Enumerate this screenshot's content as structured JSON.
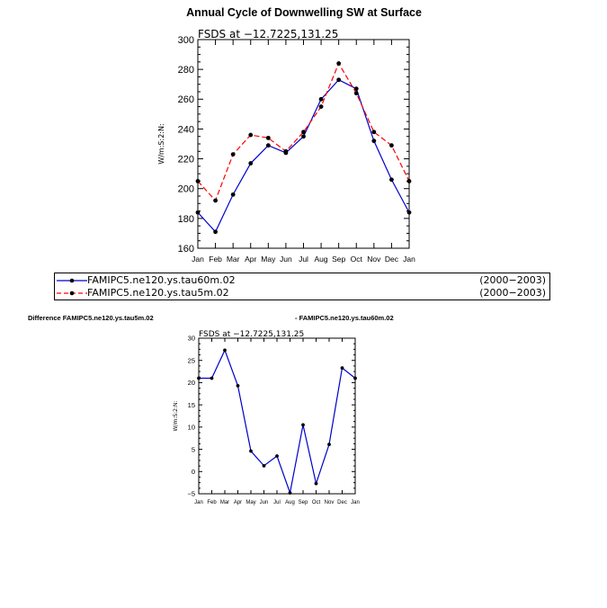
{
  "chart_data": [
    {
      "type": "line",
      "title": "Annual Cycle of Downwelling SW at Surface",
      "subtitle": "FSDS at −12.7225,131.25",
      "ylabel": "W/m:S:2:N:",
      "categories": [
        "Jan",
        "Feb",
        "Mar",
        "Apr",
        "May",
        "Jun",
        "Jul",
        "Aug",
        "Sep",
        "Oct",
        "Nov",
        "Dec",
        "Jan"
      ],
      "ylim": [
        160,
        300
      ],
      "yticks": [
        160,
        180,
        200,
        220,
        240,
        260,
        280,
        300
      ],
      "series": [
        {
          "name": "FAMIPC5.ne120.ys.tau60m.02",
          "period": "(2000−2003)",
          "color": "#0000cc",
          "dash": "solid",
          "values": [
            184,
            171,
            196,
            217,
            229,
            224,
            235,
            260,
            273,
            267,
            232,
            206,
            184
          ]
        },
        {
          "name": "FAMIPC5.ne120.ys.tau5m.02",
          "period": "(2000−2003)",
          "color": "#ff0000",
          "dash": "dashed",
          "values": [
            205,
            192,
            223,
            236,
            234,
            225,
            238,
            255,
            284,
            264,
            238,
            229,
            205
          ]
        }
      ]
    },
    {
      "type": "line",
      "title_left": "Difference FAMIPC5.ne120.ys.tau5m.02",
      "title_right": "- FAMIPC5.ne120.ys.tau60m.02",
      "subtitle": "FSDS at −12.7225,131.25",
      "ylabel": "W/m:S:2:N:",
      "categories": [
        "Jan",
        "Feb",
        "Mar",
        "Apr",
        "May",
        "Jun",
        "Jul",
        "Aug",
        "Sep",
        "Oct",
        "Nov",
        "Dec",
        "Jan"
      ],
      "ylim": [
        -5,
        30
      ],
      "yticks": [
        -5,
        0,
        5,
        10,
        15,
        20,
        25,
        30
      ],
      "ytick_labels": [
        "−5",
        "0",
        "5",
        "10",
        "15",
        "20",
        "25",
        "30"
      ],
      "series": [
        {
          "color": "#0000cc",
          "values": [
            21,
            21,
            27.3,
            19.3,
            4.6,
            1.3,
            3.5,
            -4.8,
            10.5,
            -2.7,
            6.1,
            23.3,
            21
          ]
        }
      ]
    }
  ]
}
